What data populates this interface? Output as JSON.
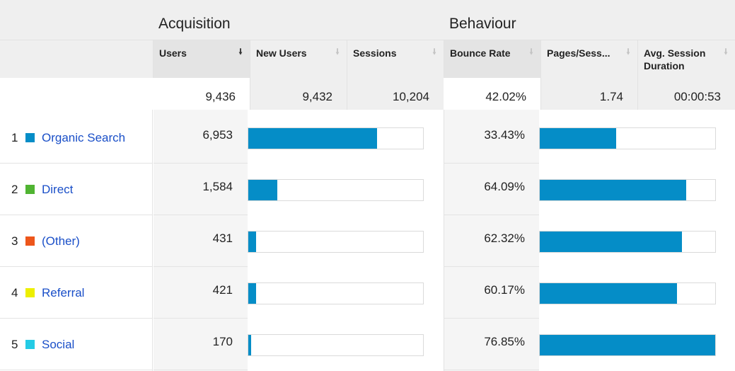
{
  "groups": {
    "acquisition": "Acquisition",
    "behaviour": "Behaviour"
  },
  "columns": {
    "users": "Users",
    "new_users": "New Users",
    "sessions": "Sessions",
    "bounce_rate": "Bounce Rate",
    "pages_per_session": "Pages/Sess...",
    "avg_session_duration": "Avg. Session Duration"
  },
  "sort_icon": "sort-down-arrow-icon",
  "totals": {
    "users": "9,436",
    "new_users": "9,432",
    "sessions": "10,204",
    "bounce_rate": "42.02%",
    "pages_per_session": "1.74",
    "avg_session_duration": "00:00:53"
  },
  "rows": [
    {
      "num": "1",
      "label": "Organic Search",
      "color": "#058dc7",
      "users": "6,953",
      "users_share": 0.737,
      "bounce_rate": "33.43%",
      "bounce_share": 0.435
    },
    {
      "num": "2",
      "label": "Direct",
      "color": "#50b432",
      "users": "1,584",
      "users_share": 0.168,
      "bounce_rate": "64.09%",
      "bounce_share": 0.834
    },
    {
      "num": "3",
      "label": "(Other)",
      "color": "#ed561b",
      "users": "431",
      "users_share": 0.046,
      "bounce_rate": "62.32%",
      "bounce_share": 0.811
    },
    {
      "num": "4",
      "label": "Referral",
      "color": "#edef00",
      "users": "421",
      "users_share": 0.045,
      "bounce_rate": "60.17%",
      "bounce_share": 0.783
    },
    {
      "num": "5",
      "label": "Social",
      "color": "#24cbe5",
      "users": "170",
      "users_share": 0.018,
      "bounce_rate": "76.85%",
      "bounce_share": 1.0
    }
  ]
}
